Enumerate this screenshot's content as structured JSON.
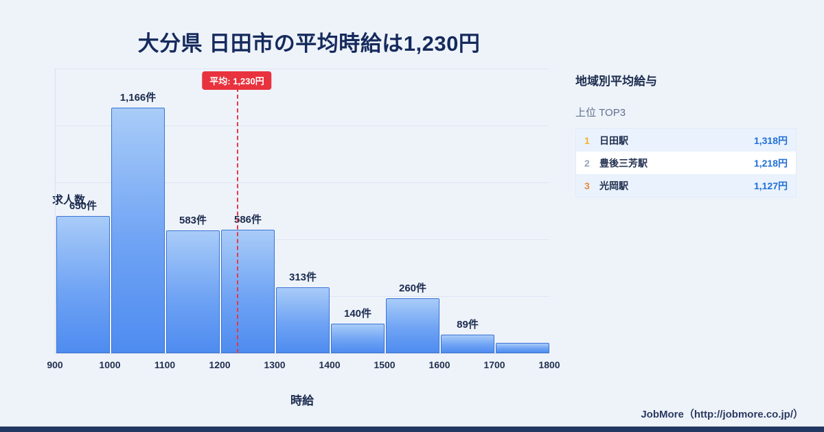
{
  "title": "大分県 日田市の平均時給は1,230円",
  "chart_data": {
    "type": "bar",
    "histogram": true,
    "bin_edges": [
      900,
      1000,
      1100,
      1200,
      1300,
      1400,
      1500,
      1600,
      1700,
      1800
    ],
    "categories": [
      "900-1000",
      "1000-1100",
      "1100-1200",
      "1200-1300",
      "1300-1400",
      "1400-1500",
      "1500-1600",
      "1600-1700",
      "1700-1800"
    ],
    "values": [
      650,
      1166,
      583,
      586,
      313,
      140,
      260,
      89,
      50
    ],
    "bar_labels": [
      "650件",
      "1,166件",
      "583件",
      "586件",
      "313件",
      "140件",
      "260件",
      "89件",
      ""
    ],
    "x_ticks": [
      "900",
      "1000",
      "1100",
      "1200",
      "1300",
      "1400",
      "1500",
      "1600",
      "1700",
      "1800"
    ],
    "xlabel": "時給",
    "ylabel": "求人数",
    "ylim": [
      0,
      1350
    ],
    "grid": "horizontal",
    "average": {
      "value": 1230,
      "label": "平均: 1,230円"
    }
  },
  "ranking": {
    "heading": "地域別平均給与",
    "subheading": "上位 TOP3",
    "rows": [
      {
        "rank": "1",
        "name": "日田駅",
        "value": "1,318円"
      },
      {
        "rank": "2",
        "name": "豊後三芳駅",
        "value": "1,218円"
      },
      {
        "rank": "3",
        "name": "光岡駅",
        "value": "1,127円"
      }
    ]
  },
  "footer": {
    "credit": "JobMore（http://jobmore.co.jp/）"
  },
  "colors": {
    "background": "#eef3fa",
    "title": "#152a5c",
    "bar_top": "#a9ccf8",
    "bar_bottom": "#4e8cf0",
    "bar_border": "#3a72d4",
    "average_red": "#e8323e",
    "value_blue": "#1f6fd6",
    "rank_gold": "#f0b429",
    "rank_bronze": "#e8883a",
    "row_highlight": "#e9f2fd",
    "bottom_strip": "#223761"
  }
}
